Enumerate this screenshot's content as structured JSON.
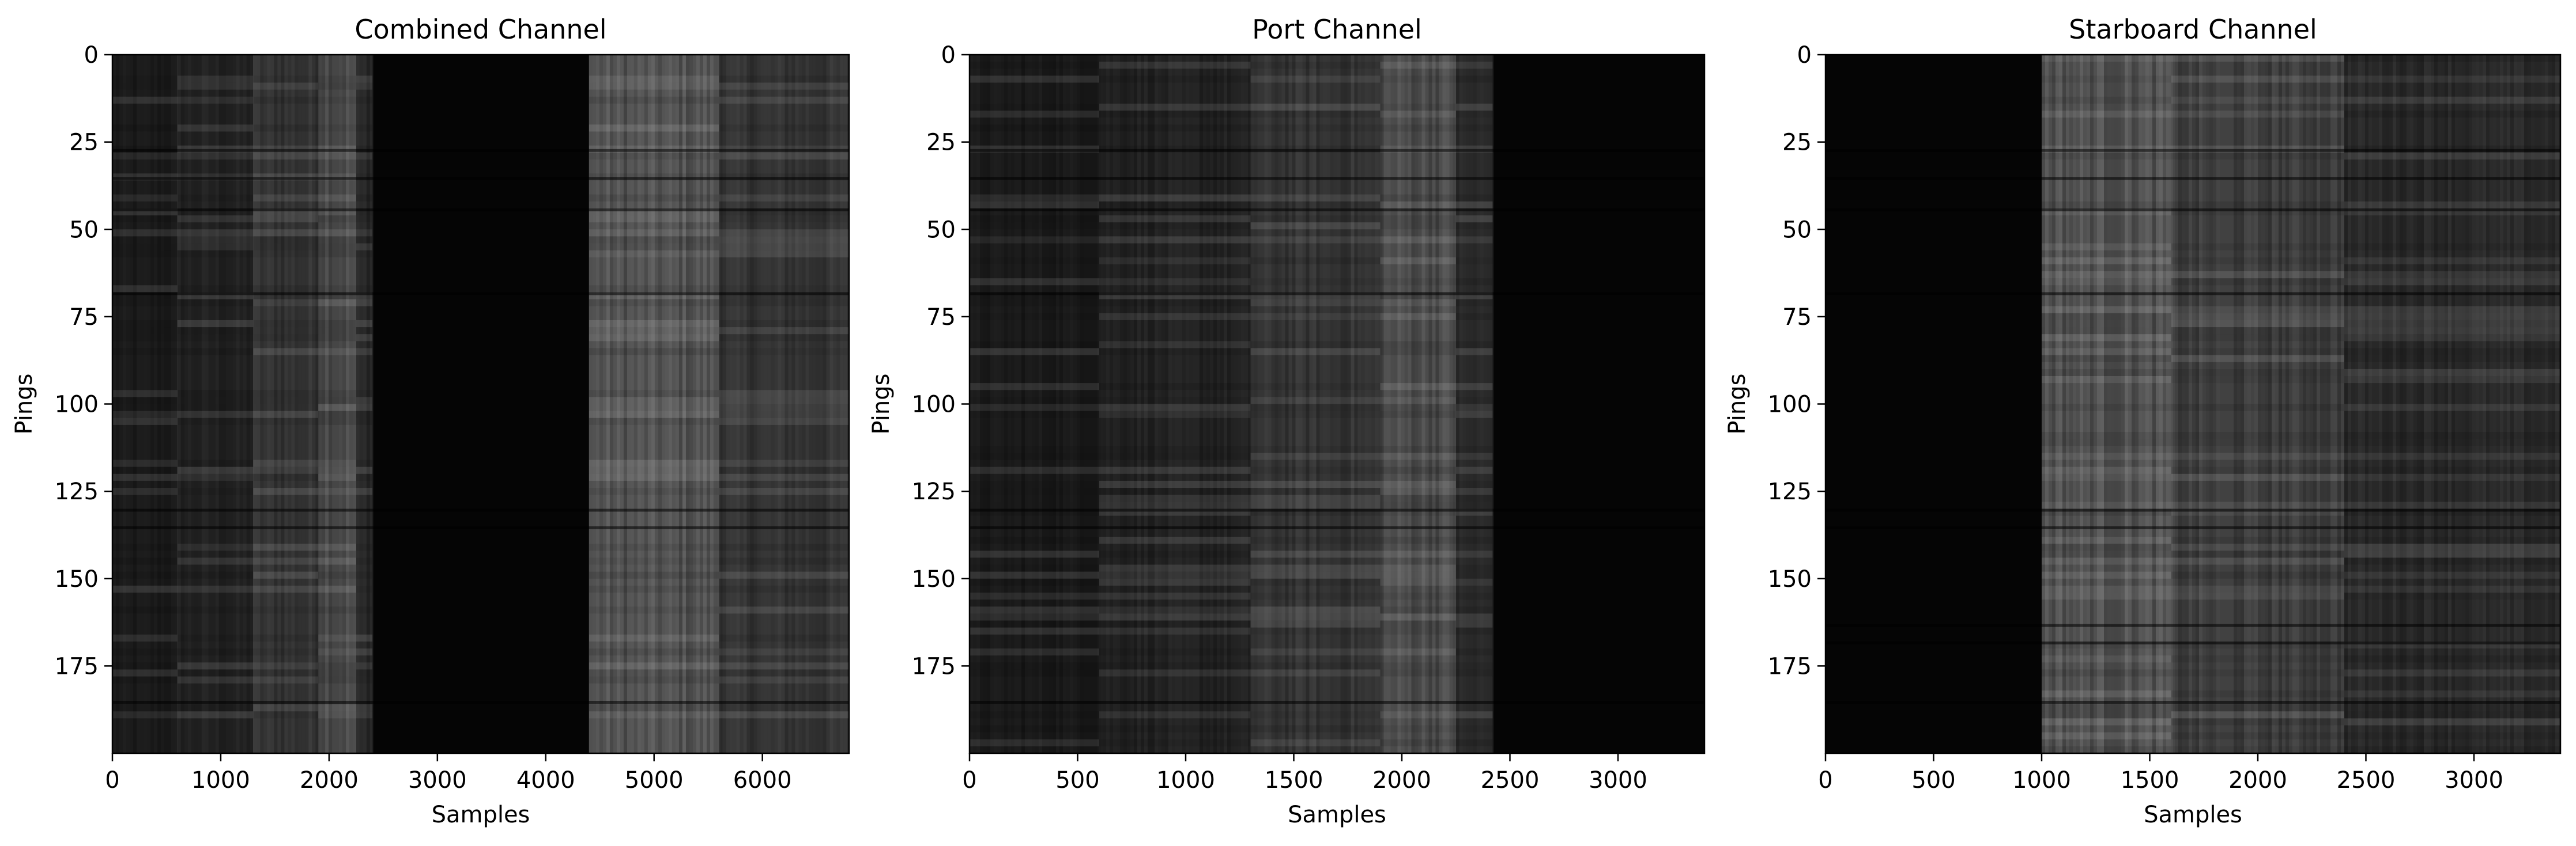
{
  "figure": {
    "background": "#ffffff",
    "colormap": "gray"
  },
  "chart_data": [
    {
      "type": "heatmap",
      "title": "Combined Channel",
      "xlabel": "Samples",
      "ylabel": "Pings",
      "xlim": [
        0,
        6800
      ],
      "ylim": [
        200,
        0
      ],
      "xticks": [
        0,
        1000,
        2000,
        3000,
        4000,
        5000,
        6000
      ],
      "yticks": [
        0,
        25,
        50,
        75,
        100,
        125,
        150,
        175
      ],
      "bands": [
        {
          "from": 0,
          "to": 600,
          "brightness": 0.1
        },
        {
          "from": 600,
          "to": 1300,
          "brightness": 0.13
        },
        {
          "from": 1300,
          "to": 1900,
          "brightness": 0.2
        },
        {
          "from": 1900,
          "to": 2250,
          "brightness": 0.3
        },
        {
          "from": 2250,
          "to": 2400,
          "brightness": 0.16
        },
        {
          "from": 2400,
          "to": 4400,
          "brightness": 0.02
        },
        {
          "from": 4400,
          "to": 5600,
          "brightness": 0.32
        },
        {
          "from": 5600,
          "to": 6800,
          "brightness": 0.2
        }
      ],
      "dark_pings": [
        27,
        35,
        44,
        68,
        130,
        135,
        185
      ]
    },
    {
      "type": "heatmap",
      "title": "Port Channel",
      "xlabel": "Samples",
      "ylabel": "Pings",
      "xlim": [
        0,
        3400
      ],
      "ylim": [
        200,
        0
      ],
      "xticks": [
        0,
        500,
        1000,
        1500,
        2000,
        2500,
        3000
      ],
      "yticks": [
        0,
        25,
        50,
        75,
        100,
        125,
        150,
        175
      ],
      "bands": [
        {
          "from": 0,
          "to": 600,
          "brightness": 0.1
        },
        {
          "from": 600,
          "to": 1300,
          "brightness": 0.13
        },
        {
          "from": 1300,
          "to": 1900,
          "brightness": 0.2
        },
        {
          "from": 1900,
          "to": 2250,
          "brightness": 0.3
        },
        {
          "from": 2250,
          "to": 2420,
          "brightness": 0.16
        },
        {
          "from": 2420,
          "to": 3400,
          "brightness": 0.02
        }
      ],
      "dark_pings": [
        27,
        35,
        44,
        68,
        130,
        135,
        185
      ]
    },
    {
      "type": "heatmap",
      "title": "Starboard Channel",
      "xlabel": "Samples",
      "ylabel": "Pings",
      "xlim": [
        0,
        3400
      ],
      "ylim": [
        200,
        0
      ],
      "xticks": [
        0,
        500,
        1000,
        1500,
        2000,
        2500,
        3000
      ],
      "yticks": [
        0,
        25,
        50,
        75,
        100,
        125,
        150,
        175
      ],
      "bands": [
        {
          "from": 0,
          "to": 1000,
          "brightness": 0.02
        },
        {
          "from": 1000,
          "to": 1600,
          "brightness": 0.32
        },
        {
          "from": 1600,
          "to": 2400,
          "brightness": 0.24
        },
        {
          "from": 2400,
          "to": 3400,
          "brightness": 0.16
        }
      ],
      "dark_pings": [
        27,
        35,
        44,
        68,
        130,
        135,
        163,
        168,
        185
      ]
    }
  ]
}
